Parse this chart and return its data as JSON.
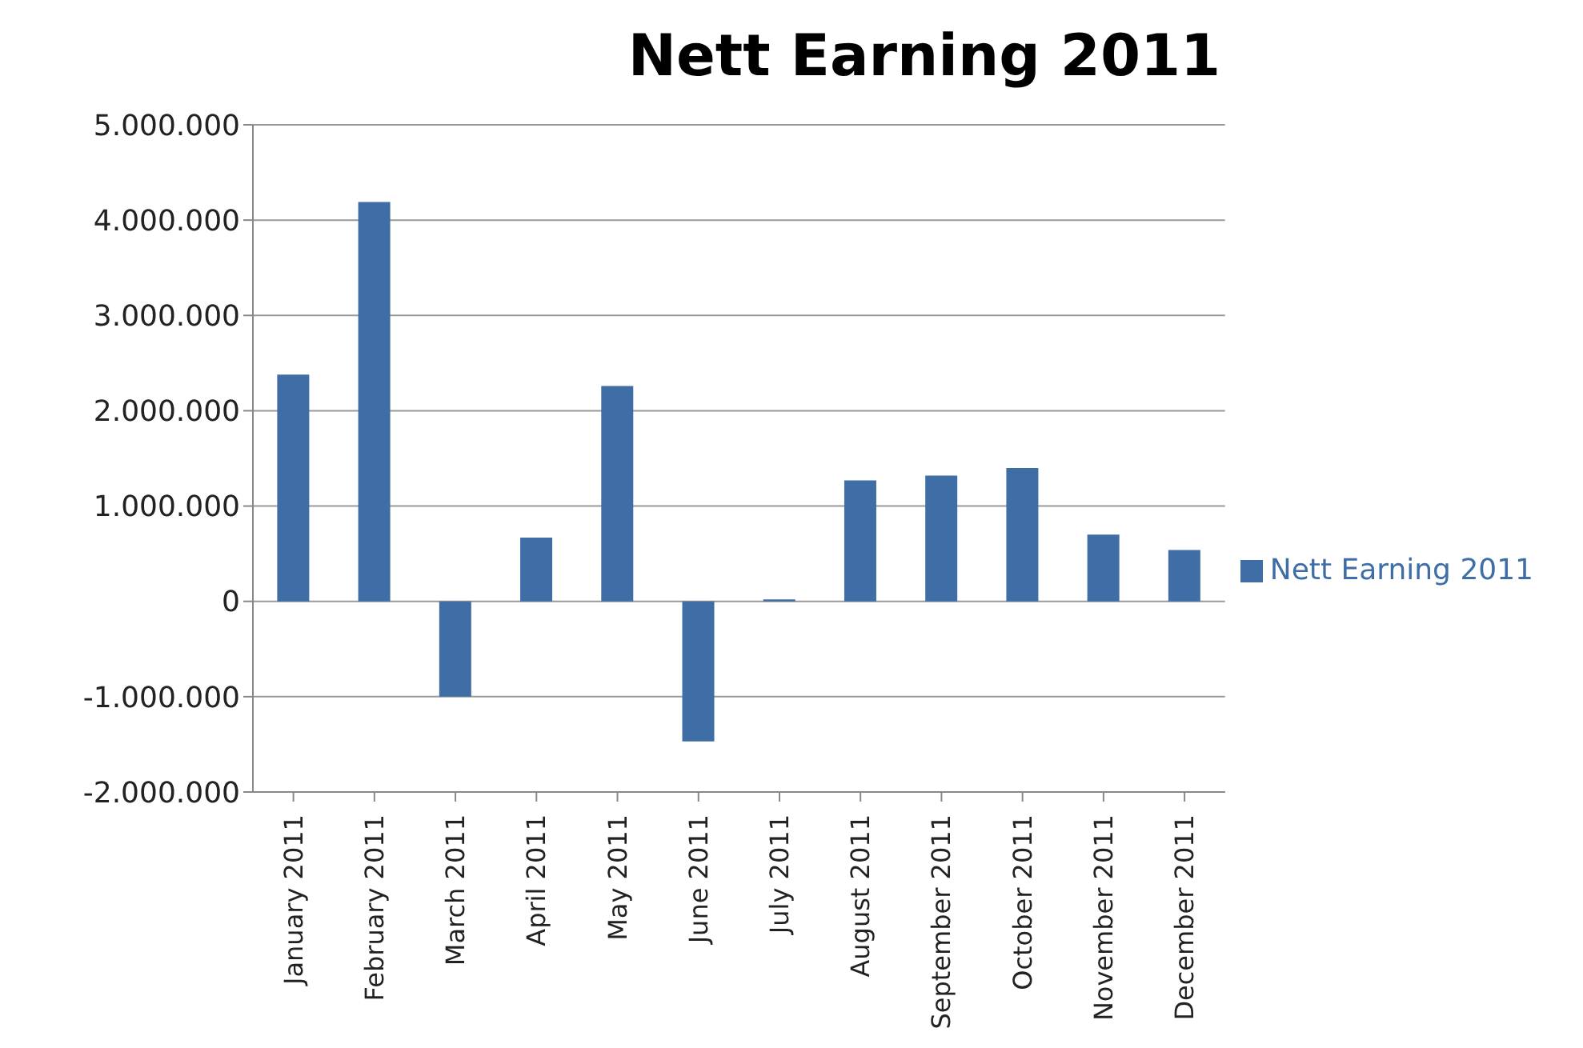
{
  "chart_data": {
    "type": "bar",
    "title": "Nett Earning 2011",
    "categories": [
      "January 2011",
      "February 2011",
      "March 2011",
      "April 2011",
      "May 2011",
      "June 2011",
      "July 2011",
      "August 2011",
      "September 2011",
      "October 2011",
      "November 2011",
      "December 2011"
    ],
    "series": [
      {
        "name": "Nett Earning 2011",
        "color": "#3f6ea6",
        "values": [
          2380000,
          4190000,
          -1000000,
          670000,
          2260000,
          -1470000,
          20000,
          1270000,
          1320000,
          1400000,
          700000,
          540000
        ]
      }
    ],
    "ylim": [
      -2000000,
      5000000
    ],
    "yticks": [
      {
        "value": -2000000,
        "label": "-2.000.000"
      },
      {
        "value": -1000000,
        "label": "-1.000.000"
      },
      {
        "value": 0,
        "label": "0"
      },
      {
        "value": 1000000,
        "label": "1.000.000"
      },
      {
        "value": 2000000,
        "label": "2.000.000"
      },
      {
        "value": 3000000,
        "label": "3.000.000"
      },
      {
        "value": 4000000,
        "label": "4.000.000"
      },
      {
        "value": 5000000,
        "label": "5.000.000"
      }
    ],
    "grid": "y",
    "legend": "right"
  }
}
